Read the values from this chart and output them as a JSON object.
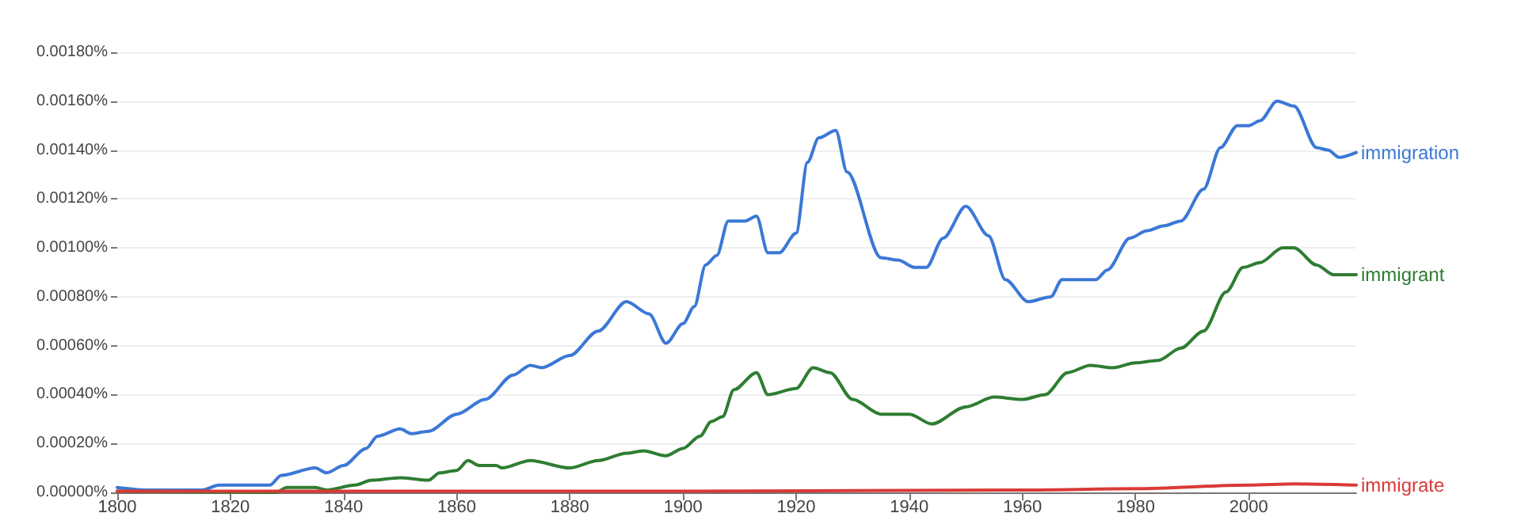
{
  "chart_data": {
    "type": "line",
    "xlim": [
      1800,
      2019
    ],
    "xticks": [
      1800,
      1820,
      1840,
      1860,
      1880,
      1900,
      1920,
      1940,
      1960,
      1980,
      2000
    ],
    "ylim": [
      0,
      0.0018
    ],
    "yticks": [
      {
        "value": 0,
        "label": "0.00000%"
      },
      {
        "value": 0.0002,
        "label": "0.00020%"
      },
      {
        "value": 0.0004,
        "label": "0.00040%"
      },
      {
        "value": 0.0006,
        "label": "0.00060%"
      },
      {
        "value": 0.0008,
        "label": "0.00080%"
      },
      {
        "value": 0.001,
        "label": "0.00100%"
      },
      {
        "value": 0.0012,
        "label": "0.00120%"
      },
      {
        "value": 0.0014,
        "label": "0.00140%"
      },
      {
        "value": 0.0016,
        "label": "0.00160%"
      },
      {
        "value": 0.0018,
        "label": "0.00180%"
      }
    ],
    "grid": "y",
    "legend": false,
    "marker": "none",
    "line_style": "solid",
    "series": [
      {
        "name": "immigration",
        "color": "#3b78d6",
        "x": [
          1800,
          1805,
          1815,
          1818,
          1827,
          1829,
          1835,
          1837,
          1840,
          1844,
          1846,
          1850,
          1852,
          1855,
          1860,
          1865,
          1870,
          1873,
          1875,
          1880,
          1885,
          1890,
          1894,
          1897,
          1900,
          1902,
          1904,
          1906,
          1908,
          1911,
          1913,
          1915,
          1917,
          1920,
          1922,
          1924,
          1927,
          1929,
          1935,
          1938,
          1941,
          1943,
          1946,
          1950,
          1954,
          1957,
          1961,
          1965,
          1967,
          1970,
          1973,
          1975,
          1979,
          1982,
          1985,
          1988,
          1992,
          1995,
          1998,
          2000,
          2002,
          2005,
          2008,
          2012,
          2014,
          2016,
          2019
        ],
        "values": [
          2e-05,
          1e-05,
          1e-05,
          3e-05,
          3e-05,
          7e-05,
          0.0001,
          8e-05,
          0.00011,
          0.00018,
          0.00023,
          0.00026,
          0.00024,
          0.00025,
          0.00032,
          0.00038,
          0.00048,
          0.00052,
          0.00051,
          0.00056,
          0.00066,
          0.00078,
          0.00073,
          0.00061,
          0.00069,
          0.00076,
          0.00093,
          0.00097,
          0.00111,
          0.00111,
          0.00113,
          0.00098,
          0.00098,
          0.00106,
          0.00135,
          0.00145,
          0.00148,
          0.00131,
          0.00096,
          0.00095,
          0.00092,
          0.00092,
          0.00104,
          0.00117,
          0.00105,
          0.00087,
          0.00078,
          0.0008,
          0.00087,
          0.00087,
          0.00087,
          0.00091,
          0.00104,
          0.00107,
          0.00109,
          0.00111,
          0.00124,
          0.00141,
          0.0015,
          0.0015,
          0.00152,
          0.0016,
          0.00158,
          0.00141,
          0.0014,
          0.00137,
          0.00139
        ]
      },
      {
        "name": "immigrant",
        "color": "#2e7d32",
        "x": [
          1800,
          1828,
          1830,
          1835,
          1837,
          1842,
          1845,
          1850,
          1855,
          1857,
          1860,
          1862,
          1864,
          1867,
          1868,
          1873,
          1880,
          1885,
          1890,
          1893,
          1897,
          1900,
          1903,
          1905,
          1907,
          1909,
          1913,
          1915,
          1920,
          1923,
          1926,
          1930,
          1935,
          1940,
          1944,
          1950,
          1955,
          1960,
          1964,
          1968,
          1972,
          1976,
          1980,
          1984,
          1988,
          1992,
          1996,
          1999,
          2002,
          2006,
          2008,
          2012,
          2015,
          2019
        ],
        "values": [
          5e-06,
          0,
          2e-05,
          2e-05,
          1e-05,
          3e-05,
          5e-05,
          6e-05,
          5e-05,
          8e-05,
          9e-05,
          0.00013,
          0.00011,
          0.00011,
          0.0001,
          0.00013,
          0.0001,
          0.00013,
          0.00016,
          0.00017,
          0.00015,
          0.00018,
          0.00023,
          0.00029,
          0.00031,
          0.00042,
          0.00049,
          0.0004,
          0.000425,
          0.00051,
          0.00049,
          0.00038,
          0.00032,
          0.00032,
          0.00028,
          0.00035,
          0.00039,
          0.00038,
          0.0004,
          0.00049,
          0.00052,
          0.00051,
          0.00053,
          0.00054,
          0.00059,
          0.00066,
          0.00082,
          0.00092,
          0.00094,
          0.001,
          0.001,
          0.00093,
          0.00089,
          0.00089
        ]
      },
      {
        "name": "immigrate",
        "color": "#d93a36",
        "x": [
          1800,
          1900,
          1960,
          1980,
          2000,
          2008,
          2019
        ],
        "values": [
          5e-06,
          5e-06,
          1e-05,
          1.5e-05,
          3e-05,
          3.5e-05,
          3e-05
        ]
      }
    ]
  }
}
